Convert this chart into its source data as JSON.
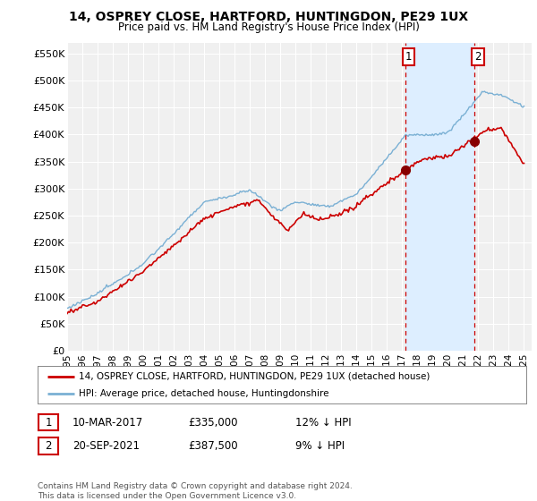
{
  "title": "14, OSPREY CLOSE, HARTFORD, HUNTINGDON, PE29 1UX",
  "subtitle": "Price paid vs. HM Land Registry's House Price Index (HPI)",
  "ylim": [
    0,
    570000
  ],
  "yticks": [
    0,
    50000,
    100000,
    150000,
    200000,
    250000,
    300000,
    350000,
    400000,
    450000,
    500000,
    550000
  ],
  "ytick_labels": [
    "£0",
    "£50K",
    "£100K",
    "£150K",
    "£200K",
    "£250K",
    "£300K",
    "£350K",
    "£400K",
    "£450K",
    "£500K",
    "£550K"
  ],
  "property_color": "#cc0000",
  "hpi_color": "#7ab0d4",
  "shade_color": "#ddeeff",
  "marker1_x": 2017.2,
  "marker1_value": 335000,
  "marker2_x": 2021.75,
  "marker2_value": 387500,
  "annotation1_date": "10-MAR-2017",
  "annotation1_price": "£335,000",
  "annotation1_pct": "12% ↓ HPI",
  "annotation2_date": "20-SEP-2021",
  "annotation2_price": "£387,500",
  "annotation2_pct": "9% ↓ HPI",
  "legend_property": "14, OSPREY CLOSE, HARTFORD, HUNTINGDON, PE29 1UX (detached house)",
  "legend_hpi": "HPI: Average price, detached house, Huntingdonshire",
  "footer": "Contains HM Land Registry data © Crown copyright and database right 2024.\nThis data is licensed under the Open Government Licence v3.0.",
  "background_color": "#ffffff",
  "plot_bg_color": "#f0f0f0"
}
